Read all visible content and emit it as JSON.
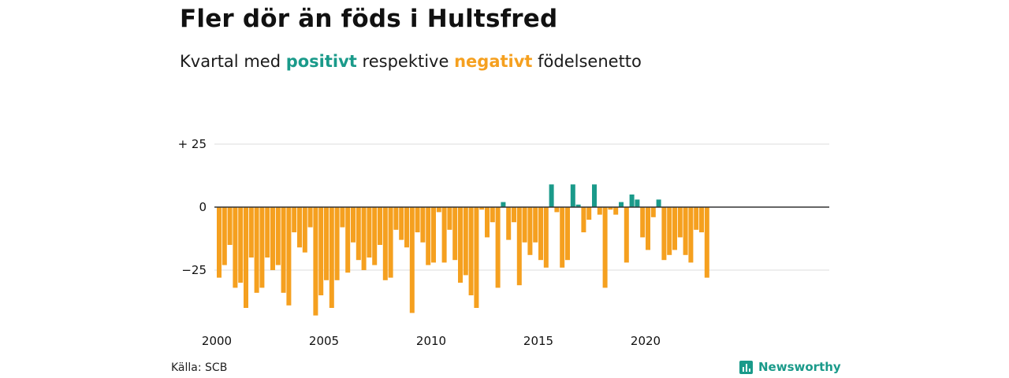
{
  "header": {
    "title": "Fler dör än föds i Hultsfred",
    "subtitle_start": "Kvartal med",
    "subtitle_positive": "positivt",
    "subtitle_middle": "respektive",
    "subtitle_negative": "negativt",
    "subtitle_end": "födelsenetto"
  },
  "footer": {
    "source": "Källa: SCB",
    "brand": "Newsworthy"
  },
  "colors": {
    "positive": "#1a9a8a",
    "negative": "#f5a01f",
    "grid": "#dddddd",
    "zero_line": "#333333"
  },
  "chart_data": {
    "type": "bar",
    "period": "quarter",
    "x_ticks": [
      "2000",
      "2005",
      "2010",
      "2015",
      "2020"
    ],
    "y_ticks": [
      25,
      0,
      -25
    ],
    "y_tick_labels": [
      "+ 25",
      "0",
      "−25"
    ],
    "ylim": [
      -45,
      27
    ],
    "start_year": 2000,
    "values": [
      -28,
      -23,
      -15,
      -32,
      -30,
      -40,
      -20,
      -34,
      -32,
      -20,
      -25,
      -23,
      -34,
      -39,
      -10,
      -16,
      -18,
      -8,
      -43,
      -35,
      -29,
      -40,
      -29,
      -8,
      -26,
      -14,
      -21,
      -25,
      -20,
      -23,
      -15,
      -29,
      -28,
      -9,
      -13,
      -16,
      -42,
      -10,
      -14,
      -23,
      -22,
      -2,
      -22,
      -9,
      -21,
      -30,
      -27,
      -35,
      -40,
      -1,
      -12,
      -6,
      -32,
      2,
      -13,
      -6,
      -31,
      -14,
      -19,
      -14,
      -21,
      -24,
      9,
      -2,
      -24,
      -21,
      9,
      1,
      -10,
      -5,
      9,
      -3,
      -32,
      -1,
      -3,
      2,
      -22,
      5,
      3,
      -12,
      -17,
      -4,
      3,
      -21,
      -19,
      -17,
      -12,
      -19,
      -22,
      -9,
      -10,
      -28
    ]
  }
}
